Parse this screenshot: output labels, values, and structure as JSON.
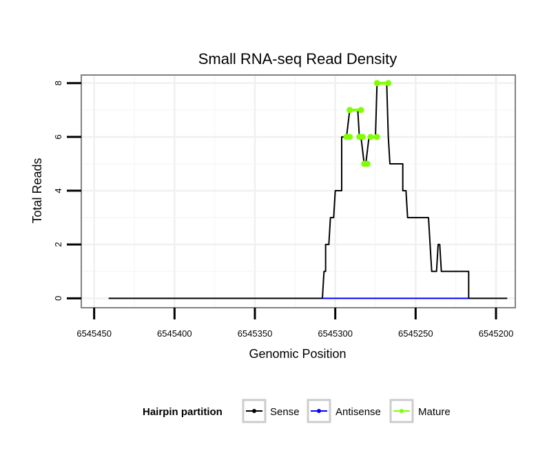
{
  "chart_data": {
    "type": "line",
    "title": "Small RNA-seq Read Density",
    "xlabel": "Genomic Position",
    "ylabel": "Total Reads",
    "xlim": [
      6545458,
      6545188
    ],
    "ylim": [
      -0.35,
      8.3
    ],
    "x_ticks": [
      6545450,
      6545400,
      6545350,
      6545300,
      6545250,
      6545200
    ],
    "x_tick_labels": [
      "6545450",
      "6545400",
      "6545350",
      "6545300",
      "6545250",
      "6545200"
    ],
    "y_ticks": [
      0,
      2,
      4,
      6,
      8
    ],
    "y_tick_labels": [
      "0",
      "2",
      "4",
      "6",
      "8"
    ],
    "grid": true,
    "legend": {
      "title": "Hairpin partition",
      "position": "bottom",
      "items": [
        {
          "label": "Sense",
          "color": "#000000"
        },
        {
          "label": "Antisense",
          "color": "#0000ff"
        },
        {
          "label": "Mature",
          "color": "#7fff00"
        }
      ]
    },
    "series": [
      {
        "name": "Sense",
        "color": "#000000",
        "x": [
          6545441,
          6545308,
          6545307,
          6545306,
          6545306,
          6545305,
          6545305,
          6545304,
          6545303,
          6545303,
          6545301,
          6545300,
          6545300,
          6545296,
          6545296,
          6545295,
          6545293,
          6545291,
          6545291,
          6545289,
          6545286,
          6545285,
          6545284,
          6545282,
          6545281,
          6545279,
          6545278,
          6545275,
          6545274,
          6545273,
          6545268,
          6545267,
          6545266,
          6545265,
          6545258,
          6545258,
          6545257,
          6545256,
          6545255,
          6545254,
          6545242,
          6545240,
          6545240,
          6545237,
          6545236,
          6545235,
          6545234,
          6545234,
          6545217,
          6545217,
          6545216,
          6545193
        ],
        "y": [
          0,
          0,
          1,
          1,
          2,
          2,
          2,
          2,
          3,
          3,
          3,
          4,
          4,
          4,
          6,
          6,
          6,
          7,
          7,
          7,
          7,
          6,
          6,
          5,
          5,
          6,
          6,
          6,
          8,
          8,
          8,
          6,
          5,
          5,
          5,
          4,
          4,
          4,
          3,
          3,
          3,
          1,
          1,
          1,
          2,
          2,
          1,
          1,
          1,
          0,
          0,
          0
        ]
      },
      {
        "name": "Antisense",
        "color": "#0000ff",
        "x": [
          6545308,
          6545217
        ],
        "y": [
          0,
          0
        ]
      },
      {
        "name": "Mature",
        "color": "#7fff00",
        "segments": [
          {
            "x": [
              6545293,
              6545291
            ],
            "y": [
              6,
              6
            ]
          },
          {
            "x": [
              6545291,
              6545284
            ],
            "y": [
              7,
              7
            ]
          },
          {
            "x": [
              6545285,
              6545283
            ],
            "y": [
              6,
              6
            ]
          },
          {
            "x": [
              6545282,
              6545280
            ],
            "y": [
              5,
              5
            ]
          },
          {
            "x": [
              6545278,
              6545274
            ],
            "y": [
              6,
              6
            ]
          },
          {
            "x": [
              6545274,
              6545267
            ],
            "y": [
              8,
              8
            ]
          }
        ]
      }
    ]
  }
}
